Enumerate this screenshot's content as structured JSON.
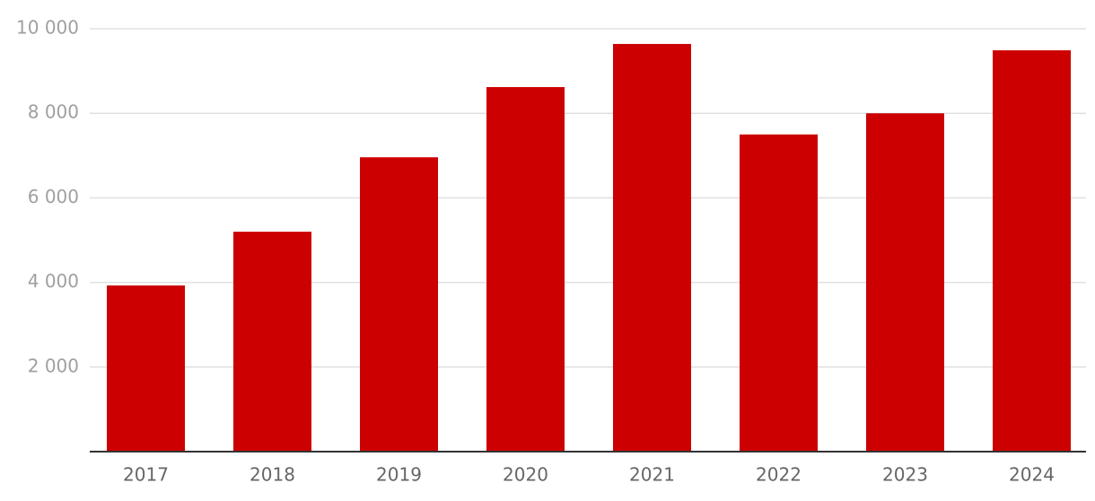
{
  "chart_data": {
    "type": "bar",
    "categories": [
      "2017",
      "2018",
      "2019",
      "2020",
      "2021",
      "2022",
      "2023",
      "2024"
    ],
    "values": [
      3930,
      5200,
      6960,
      8620,
      9640,
      7500,
      8000,
      9490
    ],
    "color": "#cc0000",
    "ylim": [
      0,
      10000
    ],
    "yticks": [
      {
        "value": 2000,
        "label": "2 000"
      },
      {
        "value": 4000,
        "label": "4 000"
      },
      {
        "value": 6000,
        "label": "6 000"
      },
      {
        "value": 8000,
        "label": "8 000"
      },
      {
        "value": 10000,
        "label": "10 000"
      }
    ],
    "grid": true
  }
}
